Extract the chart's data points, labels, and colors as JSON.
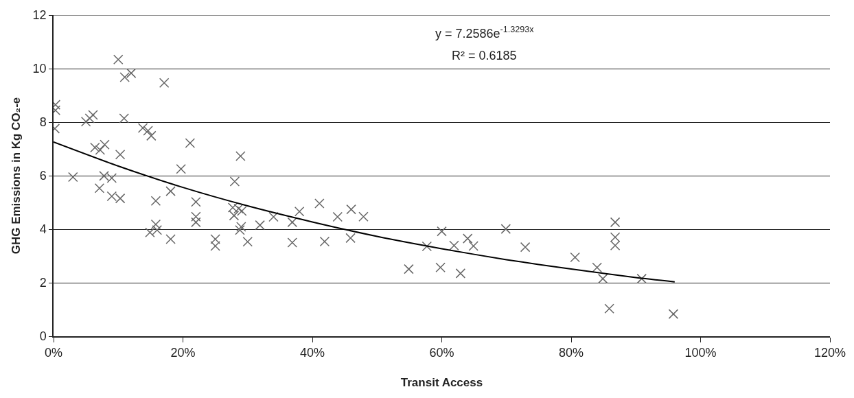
{
  "chart_data": {
    "type": "scatter",
    "xlabel": "Transit Access",
    "ylabel": "GHG Emissions in Kg CO₂-e",
    "annotations": [
      "y = 7.2586e$^{-1.3293x}$",
      "R² = 0.6185"
    ],
    "xlim": [
      0,
      120
    ],
    "xticks": [
      {
        "value": 0,
        "label": "0%"
      },
      {
        "value": 20,
        "label": "20%"
      },
      {
        "value": 40,
        "label": "40%"
      },
      {
        "value": 60,
        "label": "60%"
      },
      {
        "value": 80,
        "label": "80%"
      },
      {
        "value": 100,
        "label": "100%"
      },
      {
        "value": 120,
        "label": "120%"
      }
    ],
    "ylim": [
      0,
      12
    ],
    "yticks": [
      0,
      2,
      4,
      6,
      8,
      10,
      12
    ],
    "grid": "y",
    "marker": "cross",
    "series": [
      {
        "color": "#666666",
        "x": [
          0.3,
          0.3,
          0.2,
          3,
          5,
          5.6,
          6.1,
          6.4,
          7.2,
          7.9,
          7.1,
          7.8,
          9,
          9,
          10.3,
          10.3,
          10,
          11,
          12,
          10.9,
          17.1,
          13.8,
          14.6,
          15.1,
          14.9,
          15.8,
          16,
          15.8,
          18.1,
          18.1,
          19.7,
          21.1,
          22,
          22,
          22,
          25,
          25,
          28,
          28.9,
          27.7,
          28.6,
          29.1,
          27.9,
          29,
          28.8,
          30,
          31.9,
          34,
          36.9,
          36.9,
          38,
          41.1,
          41.9,
          43.9,
          45.9,
          46,
          47.9,
          54.9,
          57.7,
          60,
          59.8,
          61.9,
          62.9,
          64,
          64.9,
          69.9,
          72.9,
          80.6,
          84,
          84.9,
          85.9,
          86.8,
          86.8,
          86.8,
          90.9,
          95.8
        ],
        "values": [
          8.65,
          8.44,
          7.76,
          5.95,
          8.02,
          8.14,
          8.27,
          7.05,
          6.96,
          7.16,
          5.53,
          5.99,
          5.91,
          5.23,
          5.15,
          6.79,
          10.34,
          9.68,
          9.83,
          8.14,
          9.47,
          7.78,
          7.68,
          7.49,
          3.88,
          4.18,
          3.97,
          5.06,
          3.63,
          5.42,
          6.25,
          7.22,
          5.02,
          4.47,
          4.26,
          3.63,
          3.37,
          5.78,
          6.73,
          4.81,
          4.77,
          4.68,
          4.51,
          4.09,
          3.97,
          3.53,
          4.15,
          4.46,
          4.26,
          3.5,
          4.66,
          4.96,
          3.54,
          4.46,
          3.67,
          4.74,
          4.47,
          2.51,
          3.36,
          3.92,
          2.57,
          3.39,
          2.35,
          3.65,
          3.37,
          4.01,
          3.33,
          2.95,
          2.57,
          2.15,
          1.03,
          4.26,
          3.7,
          3.39,
          2.15,
          0.83
        ]
      },
      {
        "type": "line",
        "color": "#000000",
        "marker": "none",
        "line_style": "solid",
        "x": [
          0,
          10,
          20,
          30,
          40,
          50,
          60,
          70,
          80,
          90,
          96
        ],
        "values": [
          7.26,
          6.36,
          5.56,
          4.87,
          4.27,
          3.73,
          3.27,
          2.86,
          2.51,
          2.19,
          2.03
        ]
      }
    ]
  }
}
